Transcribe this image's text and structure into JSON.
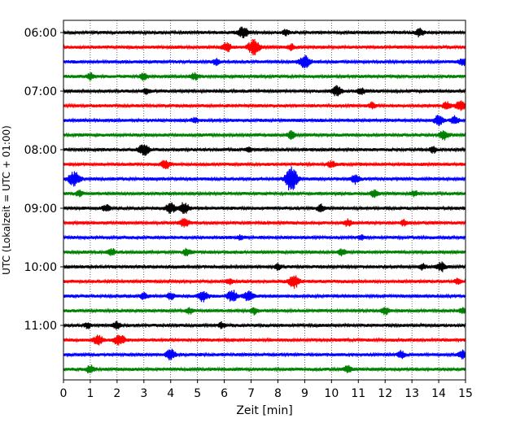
{
  "chart_data": {
    "type": "line",
    "title": "",
    "xlabel": "Zeit  [min]",
    "ylabel": "UTC (Lokalzeit = UTC + 01:00)",
    "xlim": [
      0,
      15
    ],
    "x_ticks": [
      "0",
      "1",
      "2",
      "3",
      "4",
      "5",
      "6",
      "7",
      "8",
      "9",
      "10",
      "11",
      "12",
      "13",
      "14",
      "15"
    ],
    "y_tick_labels": [
      "06:00",
      "07:00",
      "08:00",
      "09:00",
      "10:00",
      "11:00"
    ],
    "grid": "vertical dotted",
    "trace_interval_minutes": 15,
    "trace_start": "06:00",
    "trace_colors": [
      "#000000",
      "#ff0000",
      "#0000ff",
      "#008000"
    ],
    "traces": [
      {
        "start": "06:00",
        "color": "#000000",
        "events": [
          {
            "t": 6.7,
            "amp": 1.0
          },
          {
            "t": 8.3,
            "amp": 0.5
          },
          {
            "t": 13.3,
            "amp": 0.7
          }
        ]
      },
      {
        "start": "06:15",
        "color": "#ff0000",
        "events": [
          {
            "t": 6.1,
            "amp": 0.8
          },
          {
            "t": 7.1,
            "amp": 1.4
          },
          {
            "t": 8.5,
            "amp": 0.5
          }
        ]
      },
      {
        "start": "06:30",
        "color": "#0000ff",
        "events": [
          {
            "t": 5.7,
            "amp": 0.5
          },
          {
            "t": 9.0,
            "amp": 1.1
          },
          {
            "t": 14.9,
            "amp": 0.7
          }
        ]
      },
      {
        "start": "06:45",
        "color": "#008000",
        "events": [
          {
            "t": 1.0,
            "amp": 0.6
          },
          {
            "t": 3.0,
            "amp": 0.6
          },
          {
            "t": 4.9,
            "amp": 0.6
          }
        ]
      },
      {
        "start": "07:00",
        "color": "#000000",
        "events": [
          {
            "t": 3.1,
            "amp": 0.5
          },
          {
            "t": 10.2,
            "amp": 0.9
          },
          {
            "t": 11.1,
            "amp": 0.6
          }
        ]
      },
      {
        "start": "07:15",
        "color": "#ff0000",
        "events": [
          {
            "t": 11.5,
            "amp": 0.5
          },
          {
            "t": 14.3,
            "amp": 0.7
          },
          {
            "t": 14.8,
            "amp": 0.9
          }
        ]
      },
      {
        "start": "07:30",
        "color": "#0000ff",
        "events": [
          {
            "t": 4.9,
            "amp": 0.5
          },
          {
            "t": 14.0,
            "amp": 0.9
          },
          {
            "t": 14.6,
            "amp": 0.7
          }
        ]
      },
      {
        "start": "07:45",
        "color": "#008000",
        "events": [
          {
            "t": 8.5,
            "amp": 0.7
          },
          {
            "t": 14.2,
            "amp": 0.8
          }
        ]
      },
      {
        "start": "08:00",
        "color": "#000000",
        "events": [
          {
            "t": 3.0,
            "amp": 1.0
          },
          {
            "t": 6.9,
            "amp": 0.4
          },
          {
            "t": 13.8,
            "amp": 0.5
          }
        ]
      },
      {
        "start": "08:15",
        "color": "#ff0000",
        "events": [
          {
            "t": 3.8,
            "amp": 0.8
          },
          {
            "t": 10.0,
            "amp": 0.6
          }
        ]
      },
      {
        "start": "08:30",
        "color": "#0000ff",
        "events": [
          {
            "t": 0.4,
            "amp": 1.3
          },
          {
            "t": 8.5,
            "amp": 2.5
          },
          {
            "t": 10.9,
            "amp": 0.8
          }
        ]
      },
      {
        "start": "08:45",
        "color": "#008000",
        "events": [
          {
            "t": 0.6,
            "amp": 0.5
          },
          {
            "t": 11.6,
            "amp": 0.6
          },
          {
            "t": 13.1,
            "amp": 0.5
          }
        ]
      },
      {
        "start": "09:00",
        "color": "#000000",
        "events": [
          {
            "t": 1.6,
            "amp": 0.6
          },
          {
            "t": 4.0,
            "amp": 0.9
          },
          {
            "t": 4.5,
            "amp": 1.0
          },
          {
            "t": 9.6,
            "amp": 0.6
          }
        ]
      },
      {
        "start": "09:15",
        "color": "#ff0000",
        "events": [
          {
            "t": 4.5,
            "amp": 0.8
          },
          {
            "t": 10.6,
            "amp": 0.6
          },
          {
            "t": 12.7,
            "amp": 0.5
          }
        ]
      },
      {
        "start": "09:30",
        "color": "#0000ff",
        "events": [
          {
            "t": 6.6,
            "amp": 0.4
          },
          {
            "t": 11.1,
            "amp": 0.4
          }
        ]
      },
      {
        "start": "09:45",
        "color": "#008000",
        "events": [
          {
            "t": 1.8,
            "amp": 0.6
          },
          {
            "t": 4.6,
            "amp": 0.6
          },
          {
            "t": 10.4,
            "amp": 0.6
          }
        ]
      },
      {
        "start": "10:00",
        "color": "#000000",
        "events": [
          {
            "t": 8.0,
            "amp": 0.5
          },
          {
            "t": 13.4,
            "amp": 0.5
          },
          {
            "t": 14.1,
            "amp": 0.8
          }
        ]
      },
      {
        "start": "10:15",
        "color": "#ff0000",
        "events": [
          {
            "t": 6.2,
            "amp": 0.5
          },
          {
            "t": 8.6,
            "amp": 1.1
          },
          {
            "t": 14.7,
            "amp": 0.5
          }
        ]
      },
      {
        "start": "10:30",
        "color": "#0000ff",
        "events": [
          {
            "t": 3.0,
            "amp": 0.6
          },
          {
            "t": 4.0,
            "amp": 0.6
          },
          {
            "t": 5.2,
            "amp": 1.0
          },
          {
            "t": 6.3,
            "amp": 1.0
          },
          {
            "t": 6.9,
            "amp": 0.9
          }
        ]
      },
      {
        "start": "10:45",
        "color": "#008000",
        "events": [
          {
            "t": 4.7,
            "amp": 0.5
          },
          {
            "t": 7.1,
            "amp": 0.6
          },
          {
            "t": 12.0,
            "amp": 0.6
          },
          {
            "t": 14.9,
            "amp": 0.5
          }
        ]
      },
      {
        "start": "11:00",
        "color": "#000000",
        "events": [
          {
            "t": 0.9,
            "amp": 0.5
          },
          {
            "t": 2.0,
            "amp": 0.6
          },
          {
            "t": 5.9,
            "amp": 0.5
          }
        ]
      },
      {
        "start": "11:15",
        "color": "#ff0000",
        "events": [
          {
            "t": 1.3,
            "amp": 0.9
          },
          {
            "t": 2.0,
            "amp": 0.7
          },
          {
            "t": 2.2,
            "amp": 0.6
          }
        ]
      },
      {
        "start": "11:30",
        "color": "#0000ff",
        "events": [
          {
            "t": 4.0,
            "amp": 0.9
          },
          {
            "t": 12.6,
            "amp": 0.6
          },
          {
            "t": 14.9,
            "amp": 0.7
          }
        ]
      },
      {
        "start": "11:45",
        "color": "#008000",
        "events": [
          {
            "t": 1.0,
            "amp": 0.7
          },
          {
            "t": 10.6,
            "amp": 0.6
          }
        ]
      }
    ]
  }
}
